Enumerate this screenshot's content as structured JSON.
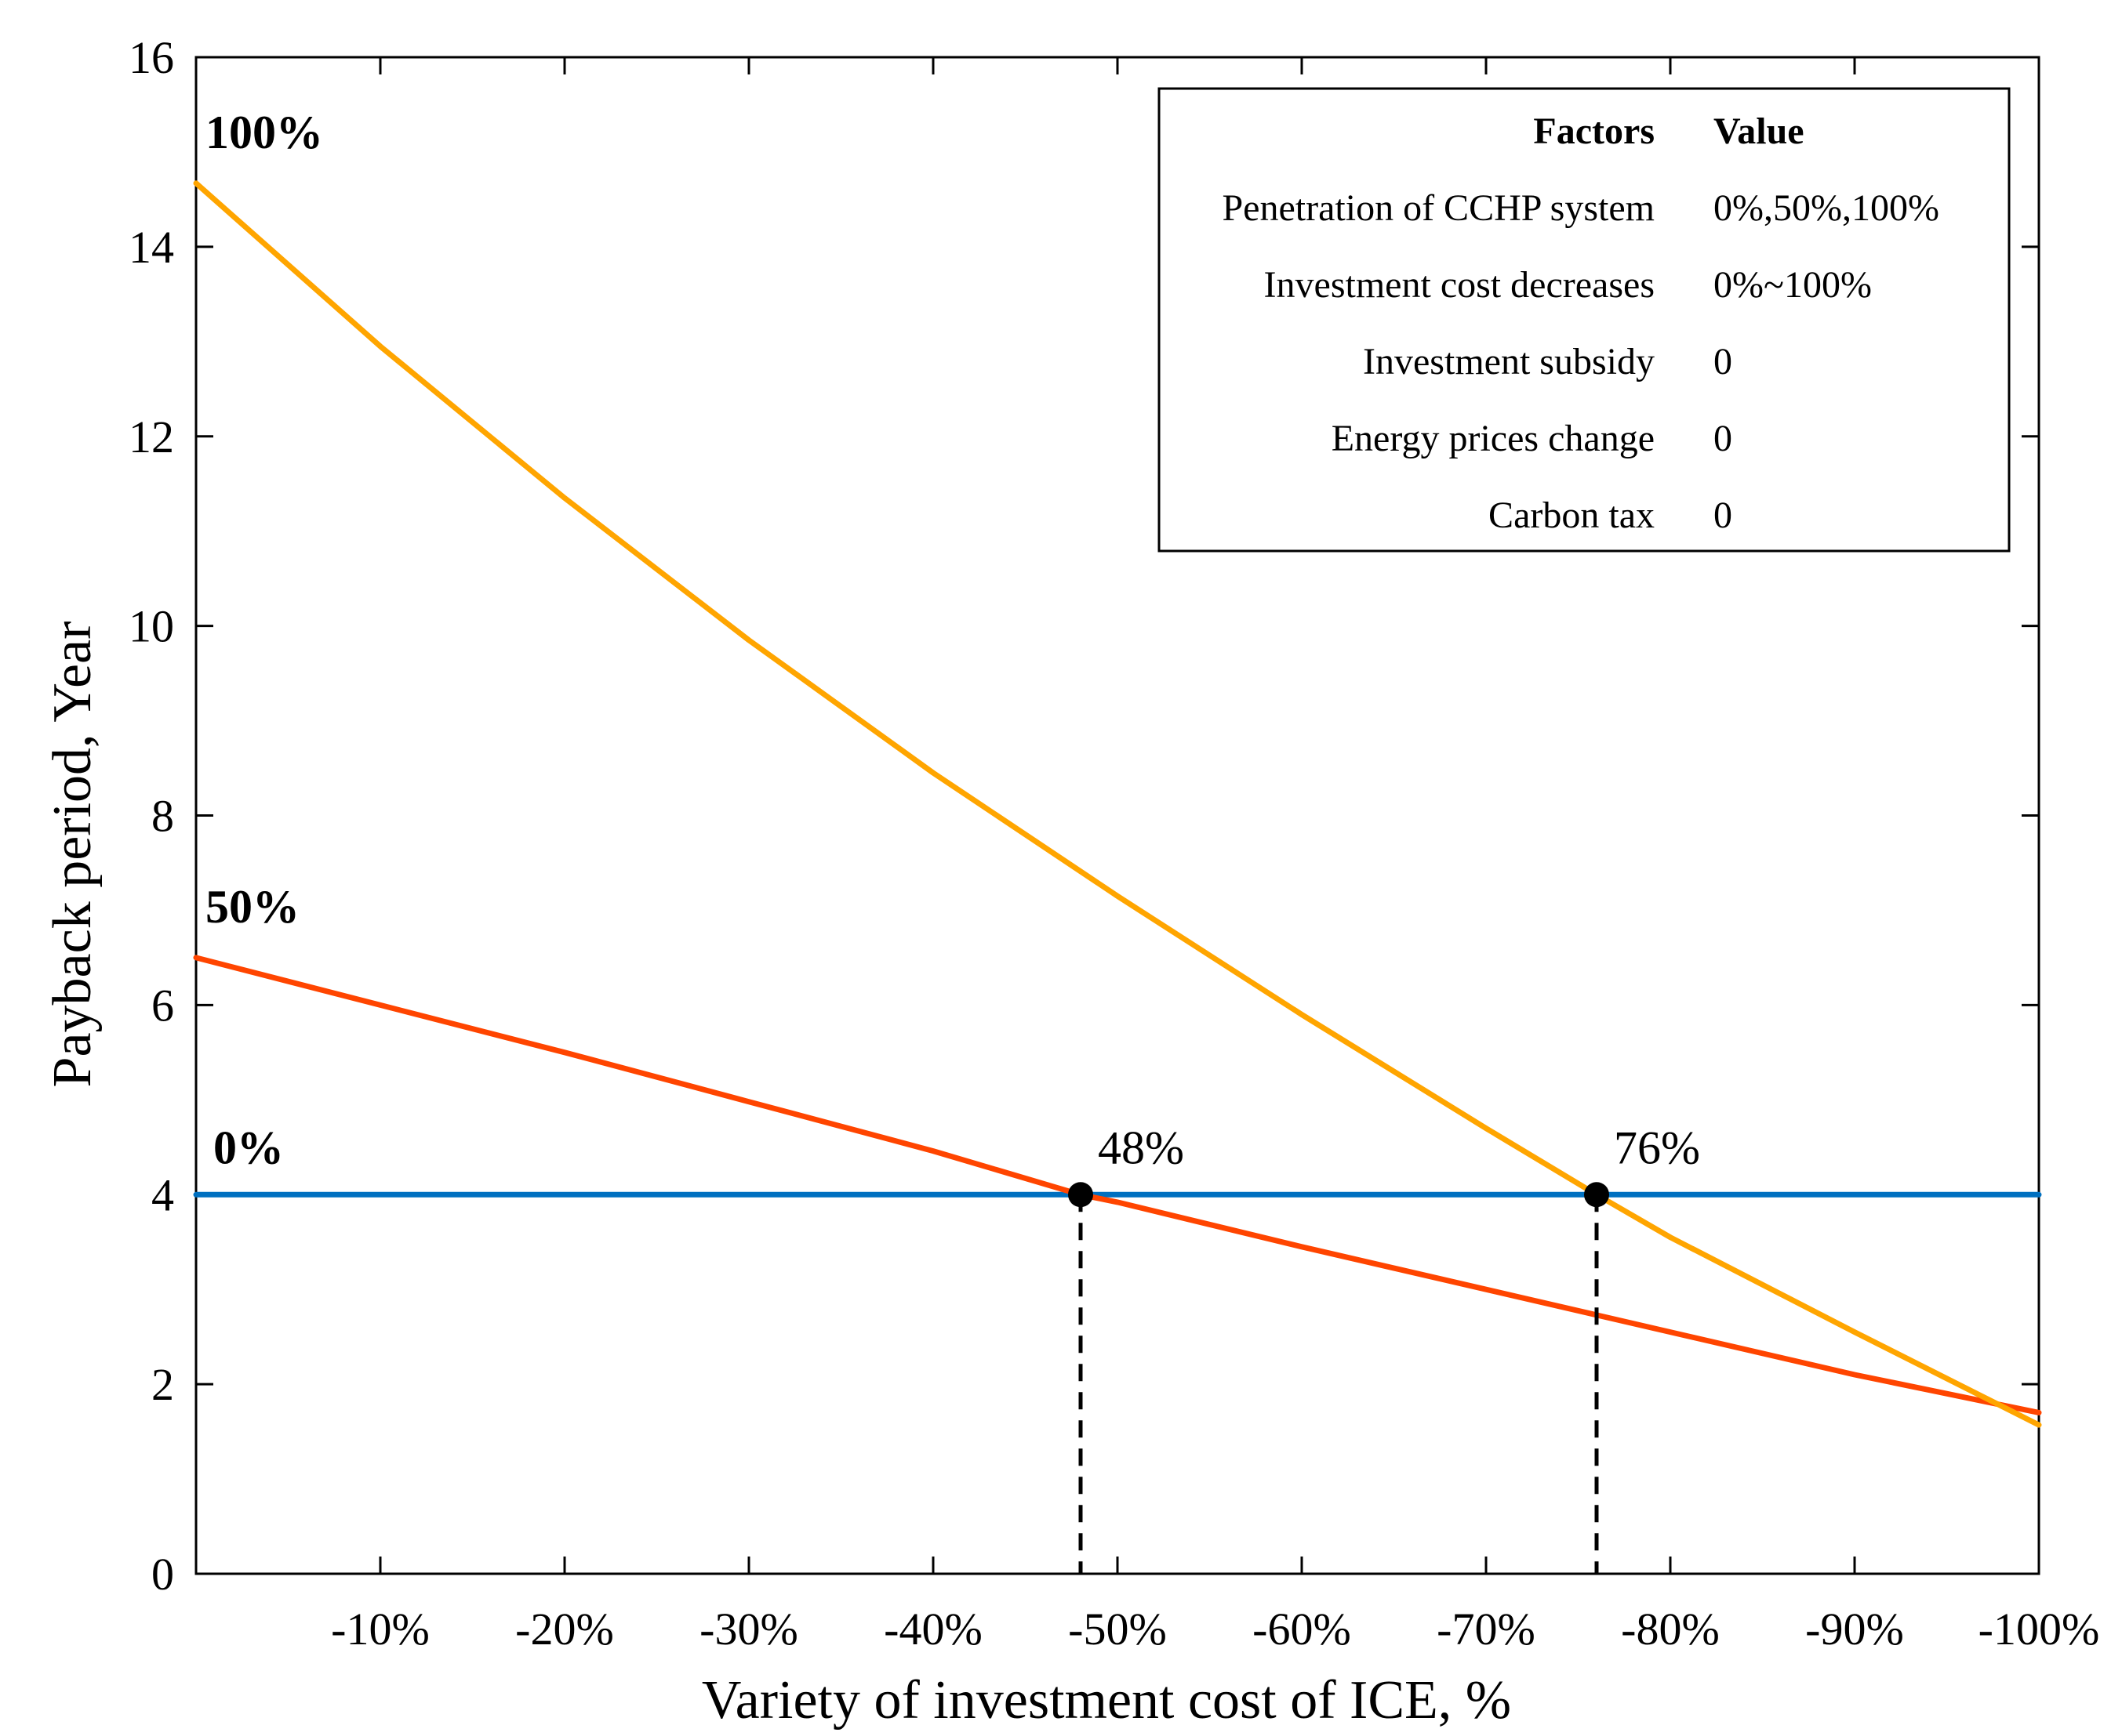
{
  "chart_data": {
    "type": "line",
    "title": "",
    "xlabel": "Variety of investment cost of ICE, %",
    "ylabel": "Payback period, Year",
    "xlim": [
      0,
      100
    ],
    "ylim": [
      0,
      16
    ],
    "x_tick_values": [
      10,
      20,
      30,
      40,
      50,
      60,
      70,
      80,
      90,
      100
    ],
    "x_tick_labels": [
      "-10%",
      "-20%",
      "-30%",
      "-40%",
      "-50%",
      "-60%",
      "-70%",
      "-80%",
      "-90%",
      "-100%"
    ],
    "y_ticks": [
      0,
      2,
      4,
      6,
      8,
      10,
      12,
      14,
      16
    ],
    "grid": false,
    "series": [
      {
        "name": "100%",
        "color": "#FFA500",
        "x": [
          0,
          10,
          20,
          30,
          40,
          50,
          60,
          70,
          76,
          80,
          90,
          100
        ],
        "y": [
          14.67,
          12.95,
          11.35,
          9.85,
          8.45,
          7.15,
          5.9,
          4.7,
          4.0,
          3.55,
          2.55,
          1.57
        ]
      },
      {
        "name": "50%",
        "color": "#FF4500",
        "x": [
          0,
          10,
          20,
          30,
          40,
          48,
          50,
          60,
          70,
          80,
          90,
          100
        ],
        "y": [
          6.5,
          6.0,
          5.5,
          4.98,
          4.46,
          4.0,
          3.92,
          3.45,
          3.0,
          2.55,
          2.1,
          1.7
        ]
      },
      {
        "name": "0%",
        "color": "#0070C0",
        "x": [
          0,
          100
        ],
        "y": [
          4,
          4
        ]
      }
    ],
    "annotations": [
      {
        "label": "48%",
        "x": 48,
        "y": 4
      },
      {
        "label": "76%",
        "x": 76,
        "y": 4
      }
    ],
    "legend_table": {
      "header": [
        "Factors",
        "Value"
      ],
      "rows": [
        [
          "Penetration of CCHP system",
          "0%,50%,100%"
        ],
        [
          "Investment cost decreases",
          "0%~100%"
        ],
        [
          "Investment subsidy",
          "0"
        ],
        [
          "Energy prices change",
          "0"
        ],
        [
          "Carbon tax",
          "0"
        ]
      ],
      "placement": "top-right"
    }
  }
}
